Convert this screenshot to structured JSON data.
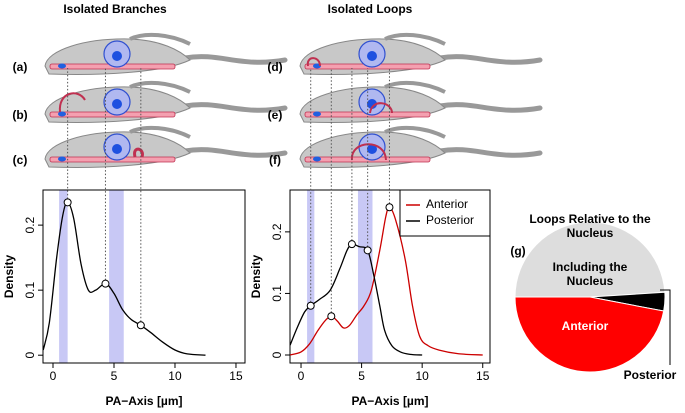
{
  "panel_labels": [
    "(a)",
    "(b)",
    "(c)",
    "(d)",
    "(e)",
    "(f)"
  ],
  "chart_data": [
    {
      "type": "line",
      "title": "Isolated Branches",
      "xlabel": "PA−Axis [µm]",
      "ylabel": "Density",
      "xlim": [
        -0.82,
        15.74
      ],
      "ylim": [
        -0.012,
        0.254
      ],
      "xticks": [
        0,
        5,
        10,
        15
      ],
      "yticks": [
        0,
        0.1,
        0.2
      ],
      "shaded_ranges": [
        [
          0.5,
          1.2
        ],
        [
          4.6,
          5.8
        ]
      ],
      "series": [
        {
          "color": "#000000",
          "x": [
            -0.8,
            -0.3,
            0.3,
            0.8,
            1.2,
            1.7,
            2.3,
            2.9,
            3.5,
            4.3,
            5.0,
            5.7,
            6.4,
            7.2,
            8.0,
            9.0,
            10.0,
            11.0,
            12.5
          ],
          "values": [
            0.008,
            0.05,
            0.15,
            0.215,
            0.235,
            0.21,
            0.14,
            0.1,
            0.1,
            0.11,
            0.095,
            0.07,
            0.055,
            0.046,
            0.035,
            0.02,
            0.008,
            0.002,
            0
          ]
        }
      ],
      "points": {
        "x": [
          1.2,
          4.3,
          7.2
        ],
        "y": [
          0.235,
          0.11,
          0.046
        ]
      }
    },
    {
      "type": "line",
      "xlabel": "PA−Axis [µm]",
      "ylabel": "Density",
      "xlim": [
        -0.91,
        15.6
      ],
      "ylim": [
        -0.013,
        0.268
      ],
      "xticks": [
        0,
        5,
        10,
        15
      ],
      "yticks": [
        0,
        0.1,
        0.2
      ],
      "shaded_ranges": [
        [
          0.5,
          1.1
        ],
        [
          4.7,
          5.9
        ]
      ],
      "legend": "top-right",
      "title": "Isolated Loops",
      "series": [
        {
          "name": "Anterior",
          "color": "#cc0000",
          "x": [
            -0.9,
            0.0,
            0.7,
            1.4,
            2.0,
            2.5,
            3.0,
            3.5,
            4.0,
            4.6,
            5.2,
            5.8,
            6.5,
            7.0,
            7.3,
            7.8,
            8.6,
            9.2,
            9.8,
            10.5,
            11.4,
            13.0,
            15.0
          ],
          "values": [
            0,
            0.005,
            0.018,
            0.04,
            0.056,
            0.063,
            0.055,
            0.044,
            0.048,
            0.065,
            0.08,
            0.105,
            0.17,
            0.225,
            0.24,
            0.22,
            0.155,
            0.08,
            0.03,
            0.015,
            0.008,
            0.002,
            0
          ]
        },
        {
          "name": "Posterior",
          "color": "#000000",
          "x": [
            -0.9,
            -0.3,
            0.3,
            0.8,
            1.5,
            2.4,
            3.2,
            3.8,
            4.2,
            4.8,
            5.5,
            6.0,
            6.5,
            6.9,
            7.5,
            8.2,
            9.0,
            10.0
          ],
          "values": [
            0.016,
            0.045,
            0.07,
            0.08,
            0.09,
            0.105,
            0.14,
            0.17,
            0.18,
            0.176,
            0.17,
            0.13,
            0.08,
            0.04,
            0.015,
            0.005,
            0.001,
            0
          ]
        }
      ],
      "points": {
        "x": [
          0.8,
          2.5,
          4.2,
          5.5,
          7.3
        ],
        "y": [
          0.08,
          0.063,
          0.18,
          0.17,
          0.24
        ]
      }
    },
    {
      "type": "pie",
      "title": "Loops Relative to the Nucleus",
      "label": "(g)",
      "categories": [
        "Including the Nucleus",
        "Posterior",
        "Anterior"
      ],
      "values": [
        49,
        4,
        47
      ],
      "colors": [
        "#dddddd",
        "#000000",
        "#ff0000"
      ]
    }
  ]
}
